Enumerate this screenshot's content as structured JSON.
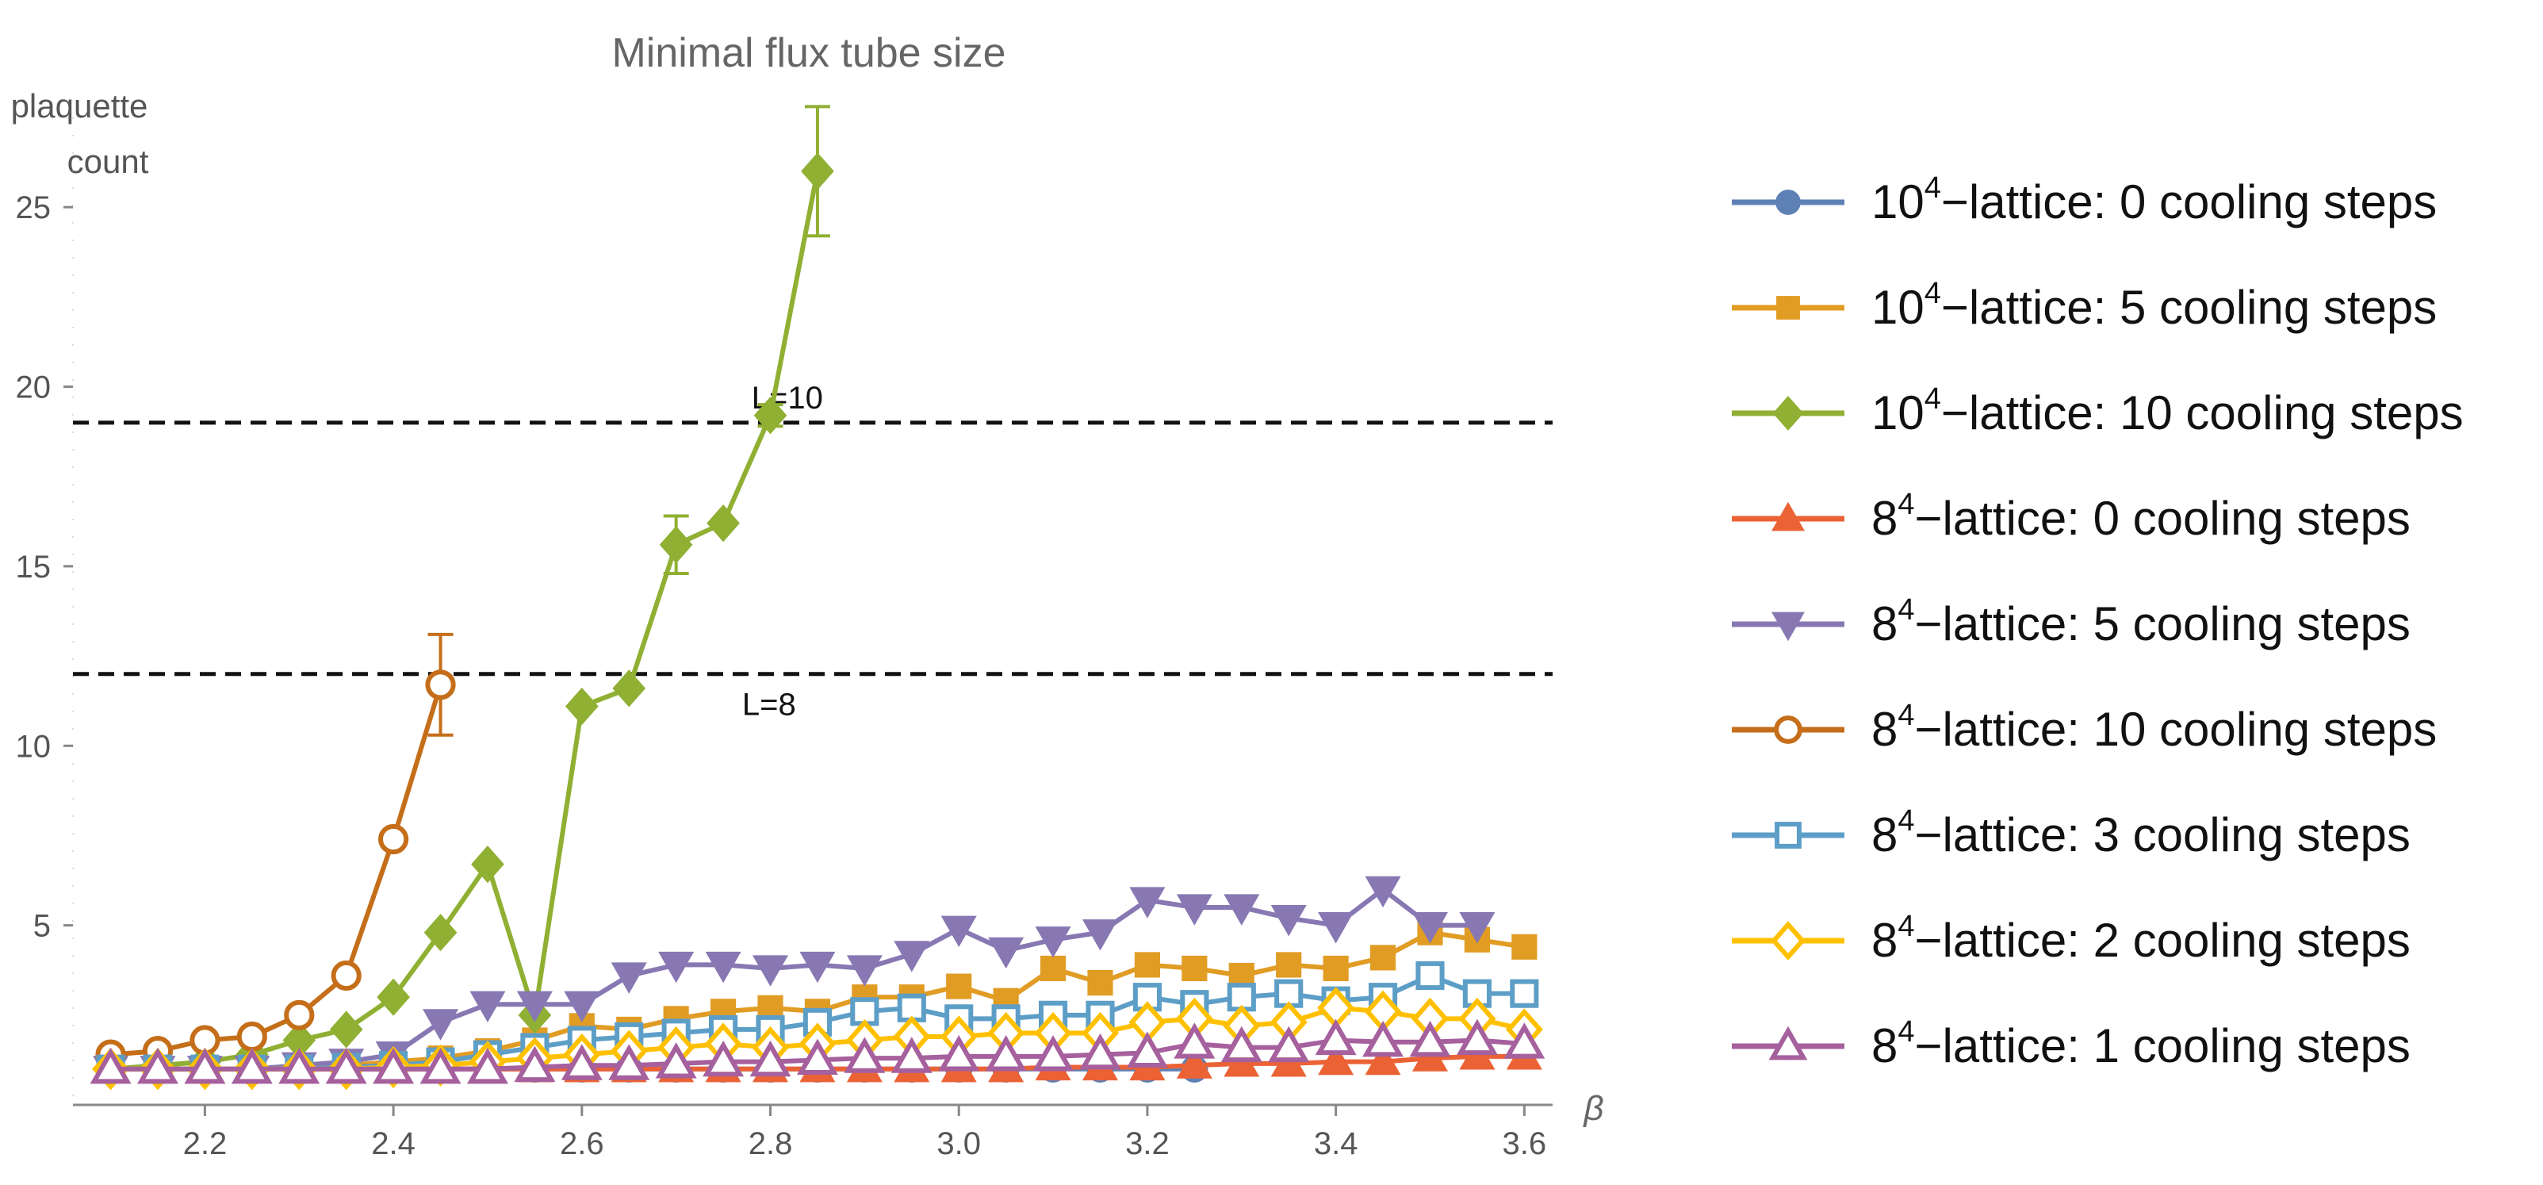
{
  "chart_data": {
    "type": "line",
    "title": "Minimal flux tube size",
    "ylabel": [
      "plaquette",
      "count"
    ],
    "xlabel": "β",
    "xlim": [
      2.06,
      3.63
    ],
    "ylim": [
      0,
      27.5
    ],
    "x_ticks": [
      2.2,
      2.4,
      2.6,
      2.8,
      3.0,
      3.2,
      3.4,
      3.6
    ],
    "x_tick_labels": [
      "2.2",
      "2.4",
      "2.6",
      "2.8",
      "3.0",
      "3.2",
      "3.4",
      "3.6"
    ],
    "y_ticks": [
      5,
      10,
      15,
      20,
      25
    ],
    "y_tick_labels": [
      "5",
      "10",
      "15",
      "20",
      "25"
    ],
    "reference_lines": [
      {
        "y": 19,
        "label": "L=10",
        "label_x": 2.78
      },
      {
        "y": 12,
        "label": "L=8",
        "label_x": 2.77
      }
    ],
    "series": [
      {
        "name": "10^4-lattice: 0 cooling steps",
        "legend_base": "10",
        "legend_exp": "4",
        "legend_rest": "−lattice: 0 cooling steps",
        "color": "#5e81b5",
        "marker": "circle",
        "filled": true,
        "x": [
          2.1,
          2.15,
          2.2,
          2.25,
          2.3,
          2.35,
          2.4,
          2.45,
          2.5,
          2.55,
          2.6,
          2.65,
          2.7,
          2.75,
          2.8,
          2.85,
          2.9,
          2.95,
          3.0,
          3.05,
          3.1,
          3.15,
          3.2,
          3.25
        ],
        "y": [
          1,
          1,
          1,
          1,
          1,
          1,
          1,
          1,
          1,
          1,
          1,
          1,
          1,
          1,
          1,
          1,
          1,
          1,
          1,
          1,
          1,
          1,
          1,
          1
        ]
      },
      {
        "name": "10^4-lattice: 5 cooling steps",
        "legend_base": "10",
        "legend_exp": "4",
        "legend_rest": "−lattice: 5 cooling steps",
        "color": "#e19c24",
        "marker": "square",
        "filled": true,
        "x": [
          2.1,
          2.15,
          2.2,
          2.25,
          2.3,
          2.35,
          2.4,
          2.45,
          2.5,
          2.55,
          2.6,
          2.65,
          2.7,
          2.75,
          2.8,
          2.85,
          2.9,
          2.95,
          3.0,
          3.05,
          3.1,
          3.15,
          3.2,
          3.25,
          3.3,
          3.35,
          3.4,
          3.45,
          3.5,
          3.55,
          3.6
        ],
        "y": [
          1,
          1,
          1,
          1,
          1,
          1.1,
          1.2,
          1.3,
          1.5,
          1.8,
          2.2,
          2.1,
          2.4,
          2.6,
          2.7,
          2.6,
          3.0,
          3.0,
          3.3,
          2.9,
          3.8,
          3.4,
          3.9,
          3.8,
          3.6,
          3.9,
          3.8,
          4.1,
          4.8,
          4.6,
          4.4
        ]
      },
      {
        "name": "10^4-lattice: 10 cooling steps",
        "legend_base": "10",
        "legend_exp": "4",
        "legend_rest": "−lattice: 10 cooling steps",
        "color": "#8fb032",
        "marker": "diamond",
        "filled": true,
        "x": [
          2.1,
          2.15,
          2.2,
          2.25,
          2.3,
          2.35,
          2.4,
          2.45,
          2.5,
          2.55,
          2.6,
          2.65,
          2.7,
          2.75,
          2.8,
          2.85
        ],
        "y": [
          1,
          1.1,
          1.2,
          1.4,
          1.8,
          2.1,
          3.0,
          4.8,
          6.7,
          2.5,
          11.1,
          11.6,
          15.6,
          16.2,
          19.2,
          26.0
        ],
        "err": [
          0,
          0,
          0,
          0,
          0,
          0,
          0,
          0,
          0,
          0,
          0,
          0,
          0.8,
          0,
          0.3,
          1.8
        ]
      },
      {
        "name": "8^4-lattice: 0 cooling steps",
        "legend_base": "8",
        "legend_exp": "4",
        "legend_rest": "−lattice: 0 cooling steps",
        "color": "#eb6235",
        "marker": "triangle-up",
        "filled": true,
        "x": [
          2.1,
          2.15,
          2.2,
          2.25,
          2.3,
          2.35,
          2.4,
          2.45,
          2.5,
          2.55,
          2.6,
          2.65,
          2.7,
          2.75,
          2.8,
          2.85,
          2.9,
          2.95,
          3.0,
          3.05,
          3.1,
          3.15,
          3.2,
          3.25,
          3.3,
          3.35,
          3.4,
          3.45,
          3.5,
          3.55,
          3.6
        ],
        "y": [
          1,
          1,
          1,
          1,
          1,
          1,
          1,
          1,
          1,
          1,
          1,
          1,
          1,
          1,
          1,
          1,
          1,
          1,
          1,
          1,
          1.05,
          1.05,
          1.05,
          1.1,
          1.15,
          1.15,
          1.2,
          1.2,
          1.3,
          1.35,
          1.35
        ]
      },
      {
        "name": "8^4-lattice: 5 cooling steps",
        "legend_base": "8",
        "legend_exp": "4",
        "legend_rest": "−lattice: 5 cooling steps",
        "color": "#8778b3",
        "marker": "triangle-down",
        "filled": true,
        "x": [
          2.1,
          2.15,
          2.2,
          2.25,
          2.3,
          2.35,
          2.4,
          2.45,
          2.5,
          2.55,
          2.6,
          2.65,
          2.7,
          2.75,
          2.8,
          2.85,
          2.9,
          2.95,
          3.0,
          3.05,
          3.1,
          3.15,
          3.2,
          3.25,
          3.3,
          3.35,
          3.4,
          3.45,
          3.5,
          3.55
        ],
        "y": [
          1,
          1,
          1,
          1,
          1.1,
          1.2,
          1.4,
          2.3,
          2.8,
          2.8,
          2.8,
          3.6,
          3.9,
          3.9,
          3.8,
          3.9,
          3.8,
          4.2,
          4.9,
          4.3,
          4.6,
          4.8,
          5.7,
          5.5,
          5.5,
          5.2,
          5.0,
          6.0,
          5.0,
          5.0
        ]
      },
      {
        "name": "8^4-lattice: 10 cooling steps",
        "legend_base": "8",
        "legend_exp": "4",
        "legend_rest": "−lattice: 10 cooling steps",
        "color": "#c56e1a",
        "marker": "circle",
        "filled": false,
        "x": [
          2.1,
          2.15,
          2.2,
          2.25,
          2.3,
          2.35,
          2.4,
          2.45
        ],
        "y": [
          1.4,
          1.5,
          1.8,
          1.9,
          2.5,
          3.6,
          7.4,
          11.7
        ],
        "err": [
          0,
          0,
          0,
          0,
          0,
          0,
          0,
          1.4
        ]
      },
      {
        "name": "8^4-lattice: 3 cooling steps",
        "legend_base": "8",
        "legend_exp": "4",
        "legend_rest": "−lattice: 3 cooling steps",
        "color": "#5d9ec7",
        "marker": "square",
        "filled": false,
        "x": [
          2.1,
          2.15,
          2.2,
          2.25,
          2.3,
          2.35,
          2.4,
          2.45,
          2.5,
          2.55,
          2.6,
          2.65,
          2.7,
          2.75,
          2.8,
          2.85,
          2.9,
          2.95,
          3.0,
          3.05,
          3.1,
          3.15,
          3.2,
          3.25,
          3.3,
          3.35,
          3.4,
          3.45,
          3.5,
          3.55,
          3.6
        ],
        "y": [
          1,
          1,
          1,
          1,
          1,
          1.05,
          1.1,
          1.2,
          1.4,
          1.6,
          1.8,
          1.9,
          2.0,
          2.1,
          2.1,
          2.3,
          2.6,
          2.7,
          2.4,
          2.4,
          2.5,
          2.5,
          3.0,
          2.8,
          3.0,
          3.1,
          2.9,
          3.0,
          3.6,
          3.1,
          3.1
        ]
      },
      {
        "name": "8^4-lattice: 2 cooling steps",
        "legend_base": "8",
        "legend_exp": "4",
        "legend_rest": "−lattice: 2 cooling steps",
        "color": "#ffc000",
        "marker": "diamond",
        "filled": false,
        "x": [
          2.1,
          2.15,
          2.2,
          2.25,
          2.3,
          2.35,
          2.4,
          2.45,
          2.5,
          2.55,
          2.6,
          2.65,
          2.7,
          2.75,
          2.8,
          2.85,
          2.9,
          2.95,
          3.0,
          3.05,
          3.1,
          3.15,
          3.2,
          3.25,
          3.3,
          3.35,
          3.4,
          3.45,
          3.5,
          3.55,
          3.6
        ],
        "y": [
          1,
          1,
          1,
          1,
          1,
          1,
          1.05,
          1.1,
          1.2,
          1.3,
          1.4,
          1.5,
          1.6,
          1.7,
          1.6,
          1.7,
          1.8,
          1.9,
          1.9,
          2.0,
          2.0,
          2.0,
          2.3,
          2.4,
          2.2,
          2.3,
          2.7,
          2.6,
          2.4,
          2.4,
          2.1
        ]
      },
      {
        "name": "8^4-lattice: 1 cooling steps",
        "legend_base": "8",
        "legend_exp": "4",
        "legend_rest": "−lattice: 1 cooling steps",
        "color": "#a5609d",
        "marker": "triangle-up",
        "filled": false,
        "x": [
          2.1,
          2.15,
          2.2,
          2.25,
          2.3,
          2.35,
          2.4,
          2.45,
          2.5,
          2.55,
          2.6,
          2.65,
          2.7,
          2.75,
          2.8,
          2.85,
          2.9,
          2.95,
          3.0,
          3.05,
          3.1,
          3.15,
          3.2,
          3.25,
          3.3,
          3.35,
          3.4,
          3.45,
          3.5,
          3.55,
          3.6
        ],
        "y": [
          1,
          1,
          1,
          1,
          1,
          1,
          1,
          1,
          1,
          1.05,
          1.1,
          1.1,
          1.15,
          1.2,
          1.2,
          1.25,
          1.3,
          1.3,
          1.35,
          1.35,
          1.35,
          1.4,
          1.45,
          1.7,
          1.6,
          1.6,
          1.8,
          1.75,
          1.75,
          1.8,
          1.7
        ]
      }
    ]
  }
}
